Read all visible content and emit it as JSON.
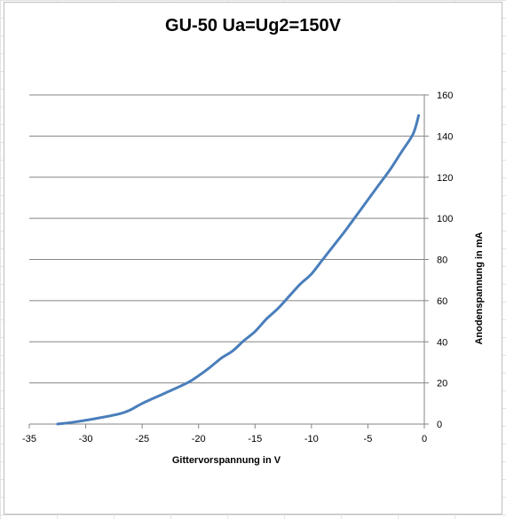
{
  "chart_data": {
    "type": "line",
    "title": "GU-50 Ua=Ug2=150V",
    "xlabel": "Gittervorspannung in V",
    "ylabel": "Anodenspannung in mA",
    "xlim": [
      -35,
      0
    ],
    "ylim": [
      0,
      160
    ],
    "x_ticks": [
      "-35",
      "-30",
      "-25",
      "-20",
      "-15",
      "-10",
      "-5",
      "0"
    ],
    "y_ticks": [
      "0",
      "20",
      "40",
      "60",
      "80",
      "100",
      "120",
      "140",
      "160"
    ],
    "y_axis_side": "right",
    "grid": "horizontal",
    "legend": "none",
    "line_color": "#4a7ebb",
    "series": [
      {
        "x": [
          -32.5,
          -31,
          -29,
          -27,
          -26,
          -25,
          -23,
          -21,
          -20,
          -19,
          -18,
          -17,
          -16,
          -15,
          -14,
          -13,
          -12,
          -11,
          -10,
          -9,
          -8,
          -7,
          -6,
          -5,
          -4,
          -3,
          -2,
          -1,
          -0.5
        ],
        "y": [
          0,
          1,
          2.8,
          5,
          7,
          10,
          15,
          20,
          23.5,
          27.5,
          32,
          35.5,
          40.5,
          45,
          51,
          56,
          62,
          68,
          73,
          80,
          87,
          94,
          101.5,
          109,
          116.5,
          124,
          132.5,
          141,
          150
        ]
      }
    ]
  }
}
